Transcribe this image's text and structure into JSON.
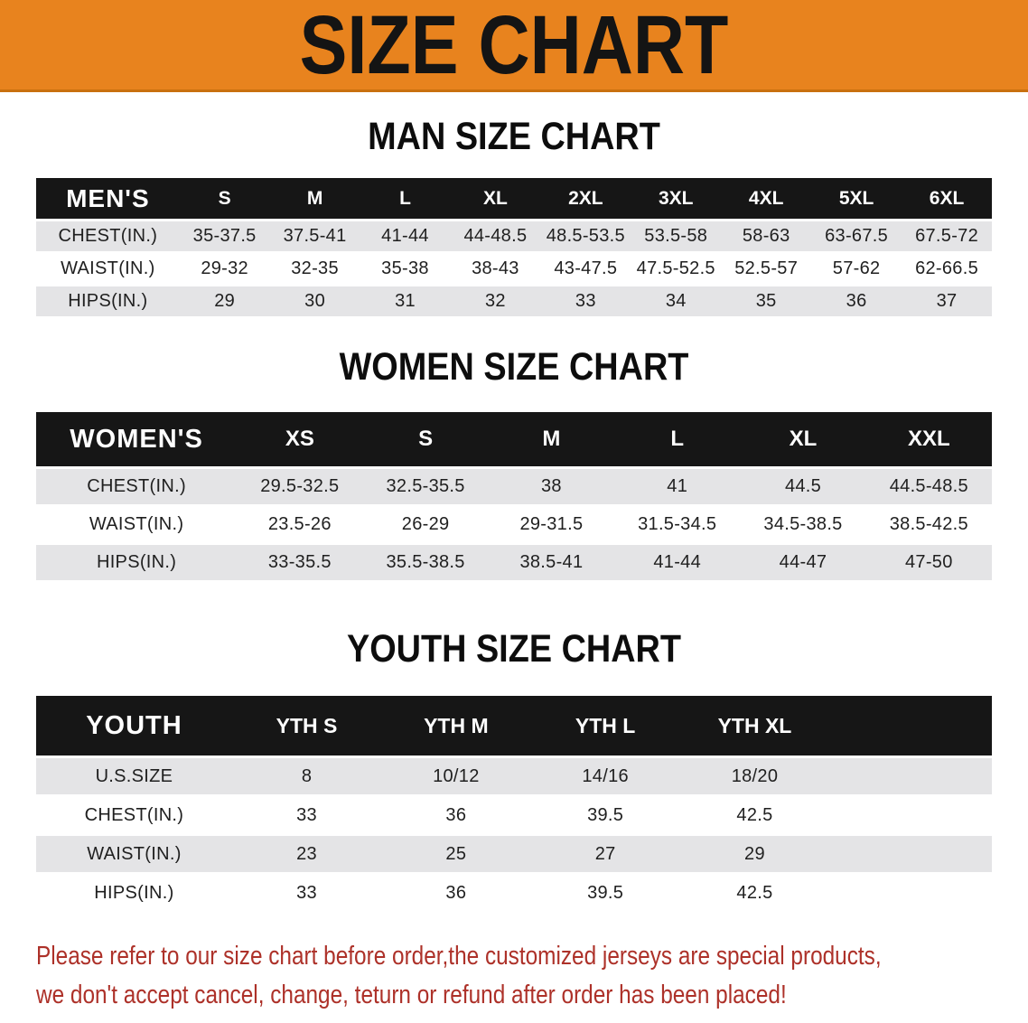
{
  "banner": {
    "title": "SIZE CHART",
    "background_color": "#E8831E",
    "edge_color": "#C9700F",
    "title_color": "#141414"
  },
  "man": {
    "heading": "MAN SIZE CHART",
    "table": {
      "label": "MEN'S",
      "sizes": [
        "S",
        "M",
        "L",
        "XL",
        "2XL",
        "3XL",
        "4XL",
        "5XL",
        "6XL"
      ],
      "rows": [
        {
          "label": "CHEST(IN.)",
          "values": [
            "35-37.5",
            "37.5-41",
            "41-44",
            "44-48.5",
            "48.5-53.5",
            "53.5-58",
            "58-63",
            "63-67.5",
            "67.5-72"
          ]
        },
        {
          "label": "WAIST(IN.)",
          "values": [
            "29-32",
            "32-35",
            "35-38",
            "38-43",
            "43-47.5",
            "47.5-52.5",
            "52.5-57",
            "57-62",
            "62-66.5"
          ]
        },
        {
          "label": "HIPS(IN.)",
          "values": [
            "29",
            "30",
            "31",
            "32",
            "33",
            "34",
            "35",
            "36",
            "37"
          ]
        }
      ]
    }
  },
  "women": {
    "heading": "WOMEN SIZE CHART",
    "table": {
      "label": "WOMEN'S",
      "sizes": [
        "XS",
        "S",
        "M",
        "L",
        "XL",
        "XXL"
      ],
      "rows": [
        {
          "label": "CHEST(IN.)",
          "values": [
            "29.5-32.5",
            "32.5-35.5",
            "38",
            "41",
            "44.5",
            "44.5-48.5"
          ]
        },
        {
          "label": "WAIST(IN.)",
          "values": [
            "23.5-26",
            "26-29",
            "29-31.5",
            "31.5-34.5",
            "34.5-38.5",
            "38.5-42.5"
          ]
        },
        {
          "label": "HIPS(IN.)",
          "values": [
            "33-35.5",
            "35.5-38.5",
            "38.5-41",
            "41-44",
            "44-47",
            "47-50"
          ]
        }
      ]
    }
  },
  "youth": {
    "heading": "YOUTH SIZE CHART",
    "table": {
      "label": "YOUTH",
      "sizes": [
        "YTH S",
        "YTH M",
        "YTH L",
        "YTH XL"
      ],
      "spacer": true,
      "rows": [
        {
          "label": "U.S.SIZE",
          "values": [
            "8",
            "10/12",
            "14/16",
            "18/20"
          ]
        },
        {
          "label": "CHEST(IN.)",
          "values": [
            "33",
            "36",
            "39.5",
            "42.5"
          ]
        },
        {
          "label": "WAIST(IN.)",
          "values": [
            "23",
            "25",
            "27",
            "29"
          ]
        },
        {
          "label": "HIPS(IN.)",
          "values": [
            "33",
            "36",
            "39.5",
            "42.5"
          ]
        }
      ]
    }
  },
  "disclaimer": {
    "line1": "Please refer to our size chart before order,the customized jerseys are special products,",
    "line2": "we don't accept cancel, change, teturn or refund after order has been placed!",
    "text_color": "#AD3129"
  },
  "colors": {
    "header_bar": "#161616",
    "stripe_gray": "#E4E4E6",
    "banner_orange": "#E8831E",
    "disclaimer_red": "#AD3129"
  }
}
